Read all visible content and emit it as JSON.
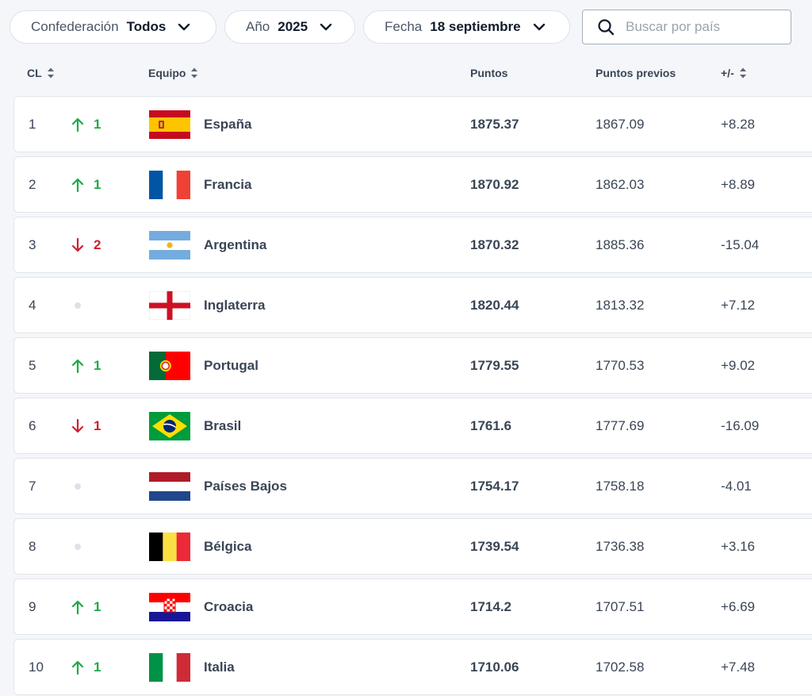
{
  "filters": {
    "confederation": {
      "label": "Confederación",
      "value": "Todos"
    },
    "year": {
      "label": "Año",
      "value": "2025"
    },
    "date": {
      "label": "Fecha",
      "value": "18 septiembre"
    }
  },
  "search": {
    "placeholder": "Buscar por país",
    "icon": "search-icon"
  },
  "columns": {
    "rank": "CL",
    "team": "Equipo",
    "points": "Puntos",
    "previous": "Puntos previos",
    "diff": "+/-"
  },
  "colors": {
    "up": "#1faa4a",
    "down": "#cc2233",
    "neutral": "#dde2ea"
  },
  "rows": [
    {
      "rank": "1",
      "trend": "up",
      "change": "1",
      "team": "España",
      "flag": "spain-flag",
      "points": "1875.37",
      "previous": "1867.09",
      "diff": "+8.28"
    },
    {
      "rank": "2",
      "trend": "up",
      "change": "1",
      "team": "Francia",
      "flag": "france-flag",
      "points": "1870.92",
      "previous": "1862.03",
      "diff": "+8.89"
    },
    {
      "rank": "3",
      "trend": "down",
      "change": "2",
      "team": "Argentina",
      "flag": "argentina-flag",
      "points": "1870.32",
      "previous": "1885.36",
      "diff": "-15.04"
    },
    {
      "rank": "4",
      "trend": "none",
      "change": "",
      "team": "Inglaterra",
      "flag": "england-flag",
      "points": "1820.44",
      "previous": "1813.32",
      "diff": "+7.12"
    },
    {
      "rank": "5",
      "trend": "up",
      "change": "1",
      "team": "Portugal",
      "flag": "portugal-flag",
      "points": "1779.55",
      "previous": "1770.53",
      "diff": "+9.02"
    },
    {
      "rank": "6",
      "trend": "down",
      "change": "1",
      "team": "Brasil",
      "flag": "brazil-flag",
      "points": "1761.6",
      "previous": "1777.69",
      "diff": "-16.09"
    },
    {
      "rank": "7",
      "trend": "none",
      "change": "",
      "team": "Países Bajos",
      "flag": "netherlands-flag",
      "points": "1754.17",
      "previous": "1758.18",
      "diff": "-4.01"
    },
    {
      "rank": "8",
      "trend": "none",
      "change": "",
      "team": "Bélgica",
      "flag": "belgium-flag",
      "points": "1739.54",
      "previous": "1736.38",
      "diff": "+3.16"
    },
    {
      "rank": "9",
      "trend": "up",
      "change": "1",
      "team": "Croacia",
      "flag": "croatia-flag",
      "points": "1714.2",
      "previous": "1707.51",
      "diff": "+6.69"
    },
    {
      "rank": "10",
      "trend": "up",
      "change": "1",
      "team": "Italia",
      "flag": "italy-flag",
      "points": "1710.06",
      "previous": "1702.58",
      "diff": "+7.48"
    }
  ]
}
